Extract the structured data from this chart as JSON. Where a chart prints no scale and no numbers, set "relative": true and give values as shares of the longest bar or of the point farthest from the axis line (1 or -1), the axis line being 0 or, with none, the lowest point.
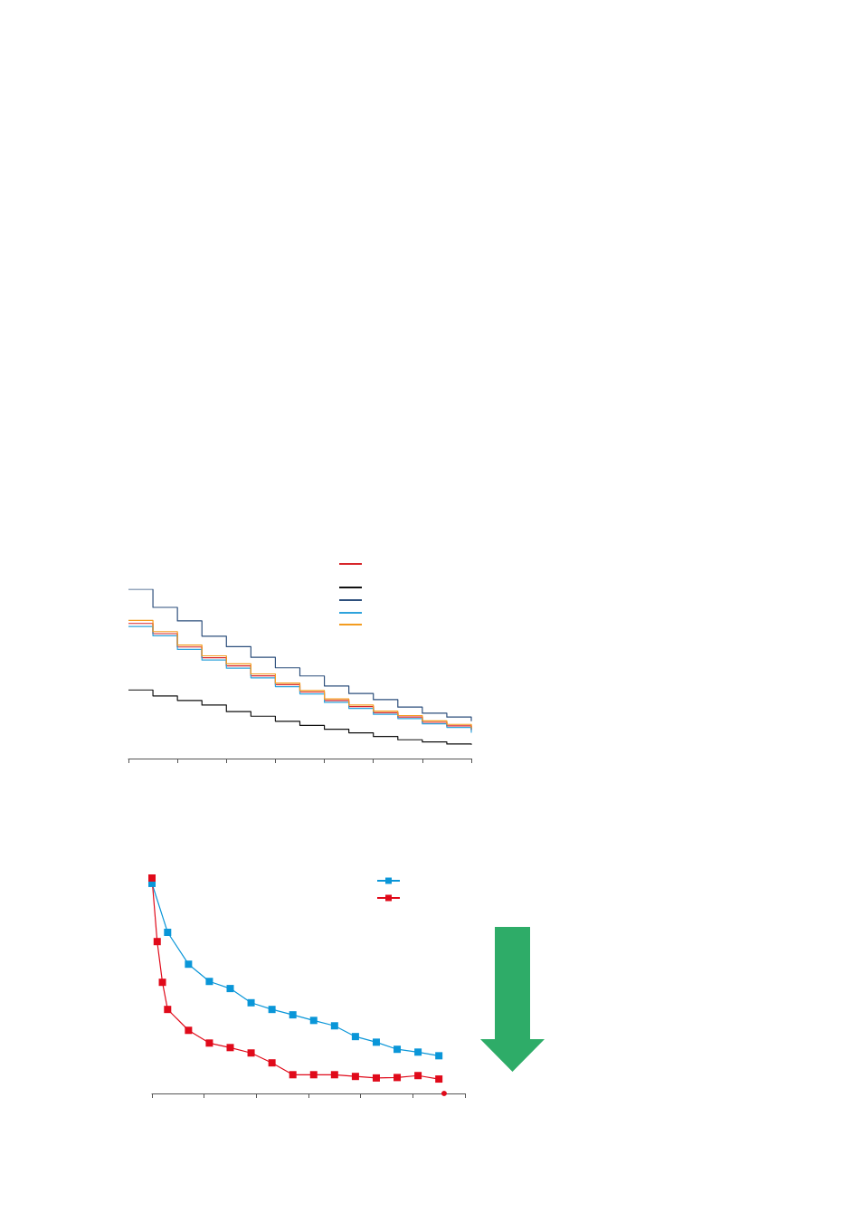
{
  "chart_data": [
    {
      "type": "step",
      "relative": true,
      "grid": false,
      "categories": [
        null,
        null,
        null,
        null,
        null,
        null,
        null,
        null,
        null,
        null,
        null,
        null,
        null,
        null,
        null
      ],
      "series": [
        {
          "color": "#d7262b",
          "values": [
            0.798,
            0.738,
            0.659,
            0.596,
            0.547,
            0.489,
            0.436,
            0.393,
            0.343,
            0.307,
            0.271,
            0.245,
            0.214,
            0.193,
            0.168
          ]
        },
        {
          "color": "#111111",
          "values": [
            0.405,
            0.37,
            0.343,
            0.316,
            0.277,
            0.25,
            0.22,
            0.196,
            0.173,
            0.152,
            0.13,
            0.111,
            0.098,
            0.086,
            0.082
          ]
        },
        {
          "color": "#2d4f7c",
          "values": [
            1,
            0.893,
            0.813,
            0.723,
            0.661,
            0.598,
            0.536,
            0.488,
            0.429,
            0.384,
            0.348,
            0.304,
            0.268,
            0.245,
            0.22
          ]
        },
        {
          "color": "#2ea3dc",
          "values": [
            0.78,
            0.725,
            0.645,
            0.582,
            0.534,
            0.477,
            0.425,
            0.382,
            0.332,
            0.296,
            0.261,
            0.236,
            0.205,
            0.184,
            0.152
          ]
        },
        {
          "color": "#f39c1f",
          "values": [
            0.816,
            0.75,
            0.67,
            0.607,
            0.559,
            0.5,
            0.446,
            0.402,
            0.352,
            0.316,
            0.28,
            0.254,
            0.223,
            0.202,
            0.179
          ]
        }
      ]
    },
    {
      "type": "line",
      "relative": true,
      "grid": false,
      "marker": "square",
      "categories": [
        null,
        null,
        null,
        null,
        null,
        null,
        null,
        null,
        null,
        null,
        null,
        null,
        null,
        null,
        null,
        null,
        null,
        null,
        null,
        null,
        null,
        null,
        null,
        null,
        null,
        null,
        null,
        null,
        null,
        null,
        null,
        null,
        null,
        null,
        null,
        null,
        null,
        null,
        null,
        null,
        null,
        null,
        null,
        null,
        null,
        null,
        null,
        null,
        null,
        null,
        null,
        null,
        null,
        null,
        null,
        null,
        null,
        null,
        null,
        null,
        null
      ],
      "series": [
        {
          "color": "#0a96d8",
          "values": [
            0.975,
            null,
            null,
            0.748,
            null,
            null,
            null,
            0.6,
            null,
            null,
            null,
            0.52,
            null,
            null,
            null,
            0.487,
            null,
            null,
            null,
            0.421,
            null,
            null,
            null,
            0.39,
            null,
            null,
            null,
            0.365,
            null,
            null,
            null,
            0.339,
            null,
            null,
            null,
            0.314,
            null,
            null,
            null,
            0.264,
            null,
            null,
            null,
            0.238,
            null,
            null,
            null,
            0.205,
            null,
            null,
            null,
            0.192,
            null,
            null,
            null,
            0.175,
            null,
            null,
            null,
            null,
            null
          ]
        },
        {
          "color": "#e00a1a",
          "values": [
            1,
            0.705,
            0.516,
            0.39,
            null,
            null,
            null,
            0.293,
            null,
            null,
            null,
            0.234,
            null,
            null,
            null,
            0.213,
            null,
            null,
            null,
            0.188,
            null,
            null,
            null,
            0.142,
            null,
            null,
            null,
            0.087,
            null,
            null,
            null,
            0.087,
            null,
            null,
            null,
            0.087,
            null,
            null,
            null,
            0.079,
            null,
            null,
            null,
            0.072,
            null,
            null,
            null,
            0.074,
            null,
            null,
            null,
            0.083,
            null,
            null,
            null,
            0.067,
            null,
            null,
            null,
            null,
            null
          ]
        },
        {
          "marker": "circle",
          "color": "#e00a1a",
          "values": [
            null,
            null,
            null,
            null,
            null,
            null,
            null,
            null,
            null,
            null,
            null,
            null,
            null,
            null,
            null,
            null,
            null,
            null,
            null,
            null,
            null,
            null,
            null,
            null,
            null,
            null,
            null,
            null,
            null,
            null,
            null,
            null,
            null,
            null,
            null,
            null,
            null,
            null,
            null,
            null,
            null,
            null,
            null,
            null,
            null,
            null,
            null,
            null,
            null,
            null,
            null,
            null,
            null,
            null,
            null,
            null,
            0,
            null,
            null,
            null,
            null
          ]
        }
      ]
    }
  ]
}
